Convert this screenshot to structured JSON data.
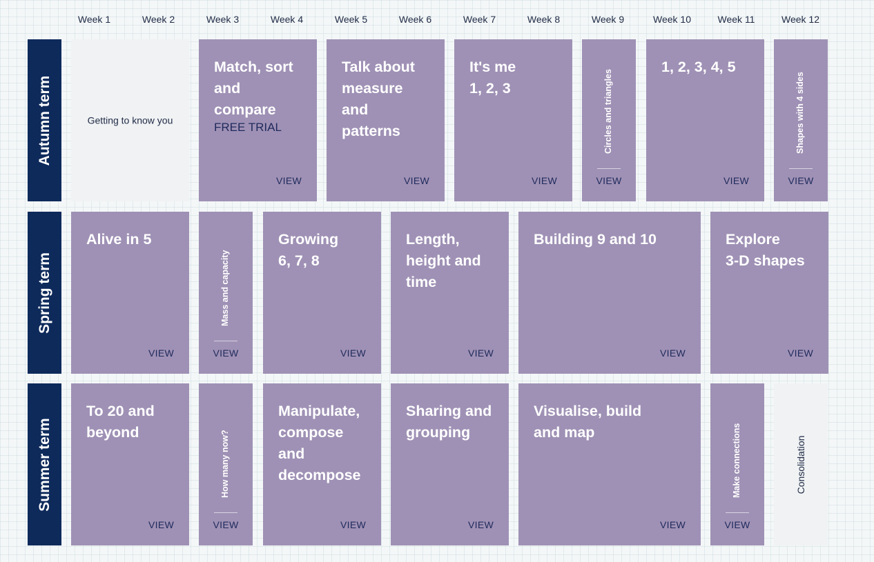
{
  "weeks": [
    "Week 1",
    "Week 2",
    "Week 3",
    "Week 4",
    "Week 5",
    "Week 6",
    "Week 7",
    "Week 8",
    "Week 9",
    "Week 10",
    "Week 11",
    "Week 12"
  ],
  "terms": [
    "Autumn term",
    "Spring term",
    "Summer term"
  ],
  "view_label": "VIEW",
  "colors": {
    "term_bg": "#0e2a5b",
    "card_purple": "#9f91b5",
    "card_grey": "#f0f2f4",
    "view_text": "#1f2a5c"
  },
  "autumn": {
    "getting_to_know": "Getting to know you",
    "match_sort": "Match, sort\nand\ncompare",
    "free_trial": "FREE TRIAL",
    "talk_about": "Talk about\nmeasure\nand\npatterns",
    "its_me": "It's me\n1, 2, 3",
    "circles": "Circles and triangles",
    "one_to_five": "1, 2, 3, 4, 5",
    "shapes4": "Shapes with 4 sides"
  },
  "spring": {
    "alive": "Alive in 5",
    "mass": "Mass and capacity",
    "growing": "Growing\n6, 7, 8",
    "length": "Length,\nheight and\ntime",
    "building": "Building 9 and 10",
    "explore": "Explore\n3-D shapes"
  },
  "summer": {
    "to20": "To 20 and\nbeyond",
    "howmany": "How many now?",
    "manipulate": "Manipulate,\ncompose\nand\ndecompose",
    "sharing": "Sharing and\ngrouping",
    "visualise": "Visualise, build\nand map",
    "connections": "Make connections",
    "consolidation": "Consolidation"
  }
}
